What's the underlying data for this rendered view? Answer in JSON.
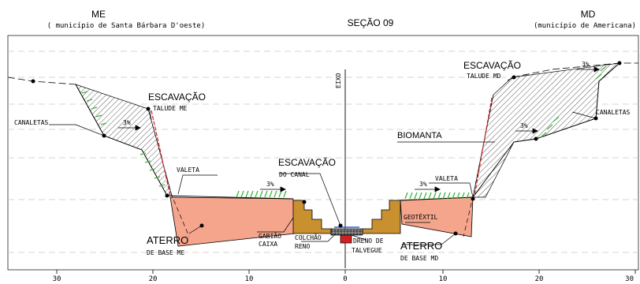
{
  "header": {
    "left_side": "ME",
    "left_municipality": "( município de Santa Bárbara D'oeste)",
    "center_title": "SEÇÃO 09",
    "right_side": "MD",
    "right_municipality": "(município de Americana)"
  },
  "axis_label": "EIXO",
  "labels": {
    "escavacao_talude_me_main": "ESCAVAÇÃO",
    "escavacao_talude_me_sub": "TALUDE ME",
    "escavacao_talude_md_main": "ESCAVAÇÃO",
    "escavacao_talude_md_sub": "TALUDE MD",
    "escavacao_canal_main": "ESCAVAÇÃO",
    "escavacao_canal_sub": "DO CANAL",
    "canaletas_left": "CANALETAS",
    "canaletas_right": "CANALETAS",
    "biomanta": "BIOMANTA",
    "valeta_left": "VALETA",
    "valeta_right": "VALETA",
    "geotextil": "GEOTÊXTIL",
    "aterro_me_main": "ATERRO",
    "aterro_me_sub": "DE BASE ME",
    "aterro_md_main": "ATERRO",
    "aterro_md_sub": "DE BASE MD",
    "gabiao_l1": "GABIÃO",
    "gabiao_l2": "CAIXA",
    "colchao_l1": "COLCHÃO",
    "colchao_l2": "RENO",
    "dreno_l1": "DRENO DE",
    "dreno_l2": "TALVEGUE"
  },
  "slopes": {
    "slope_left_upper": "3%",
    "slope_left_lower": "3%",
    "slope_right_upper": "3%",
    "slope_right_mid": "3%",
    "slope_right_lower": "3%"
  },
  "scale_ticks": [
    "30",
    "20",
    "10",
    "0",
    "10",
    "20",
    "30"
  ],
  "colors": {
    "fill_aterro": "#f4a58c",
    "fill_gabiao": "#c8902e",
    "vegetation": "#3cb83c",
    "red_line": "#d22020",
    "drain_blue": "#3a5bd0"
  }
}
